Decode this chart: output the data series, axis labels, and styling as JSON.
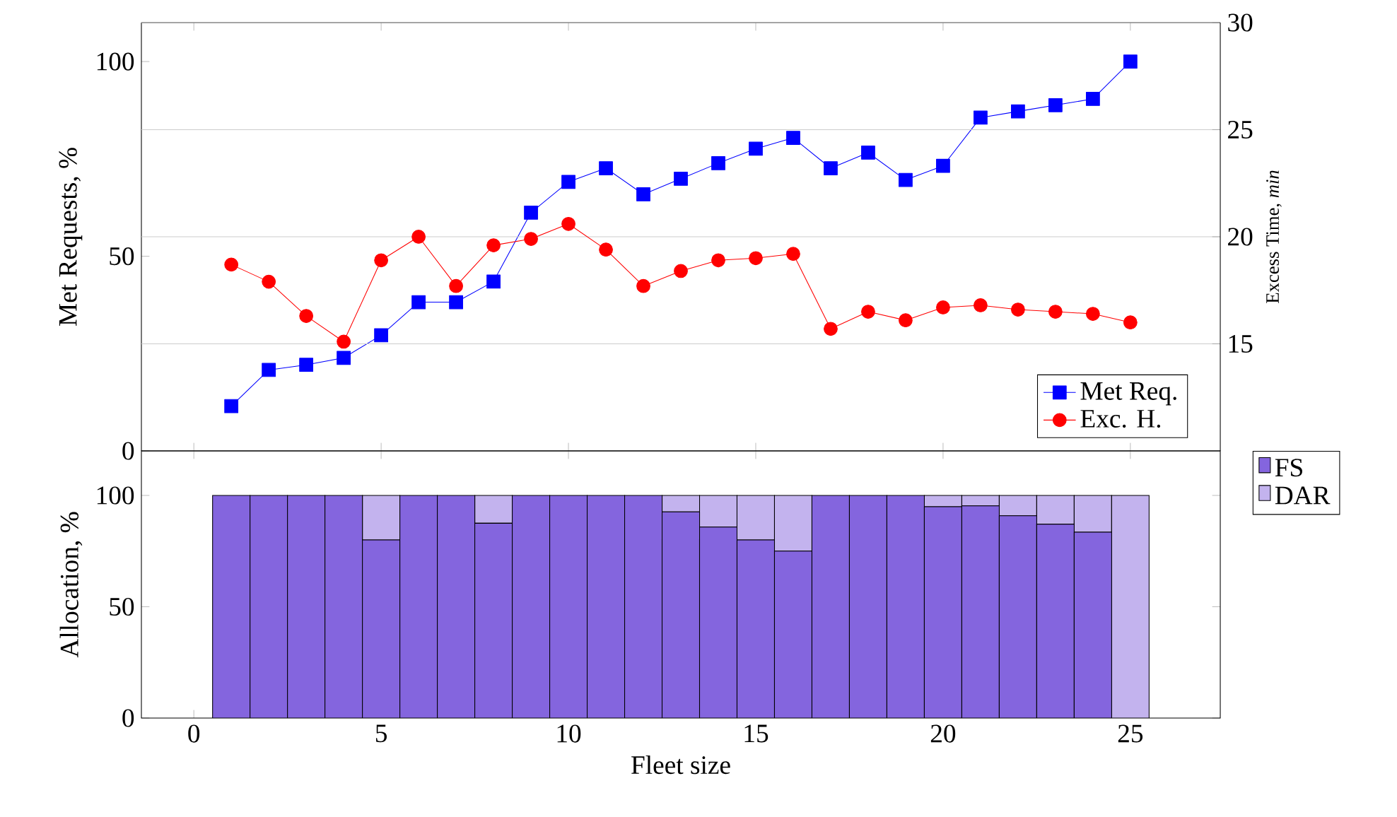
{
  "chart_data": [
    {
      "type": "line",
      "ylabel": "Met Requests, %",
      "y2label": "Excess Time, *min*",
      "x": [
        1,
        2,
        3,
        4,
        5,
        6,
        7,
        8,
        9,
        10,
        11,
        12,
        13,
        14,
        15,
        16,
        17,
        18,
        19,
        20,
        21,
        22,
        23,
        24,
        25
      ],
      "series": [
        {
          "name": "Met Req.",
          "color": "#0000ff",
          "marker": "square",
          "values": [
            11.5,
            20.8,
            22.1,
            23.9,
            29.7,
            38.2,
            38.2,
            43.5,
            61.2,
            69.1,
            72.6,
            65.9,
            69.9,
            73.9,
            77.6,
            80.4,
            72.6,
            76.6,
            69.6,
            73.2,
            85.6,
            87.2,
            88.8,
            90.4,
            100
          ]
        },
        {
          "name": "Exc. H.",
          "color": "#ff0000",
          "marker": "circle",
          "axis": "y2",
          "values": [
            18.7,
            17.9,
            16.3,
            15.1,
            18.9,
            20.0,
            17.7,
            19.6,
            19.9,
            20.6,
            19.4,
            17.7,
            18.4,
            18.9,
            19.0,
            19.2,
            15.7,
            16.5,
            16.1,
            16.7,
            16.8,
            16.6,
            16.5,
            16.4,
            16.0
          ]
        }
      ],
      "xlim": [
        -1.4,
        27.4
      ],
      "xticks": [
        0,
        5,
        10,
        15,
        20,
        25
      ],
      "ylim": [
        0,
        110
      ],
      "yticks": [
        0,
        50,
        100
      ],
      "y2lim": [
        10,
        30
      ],
      "y2ticks": [
        15,
        20,
        25,
        30
      ],
      "grid": "y",
      "legend": "bottom right",
      "tick_labels": "y"
    },
    {
      "type": "bar",
      "stacked": true,
      "xlabel": "Fleet size",
      "ylabel": "Allocation, %",
      "x": [
        1,
        2,
        3,
        4,
        5,
        6,
        7,
        8,
        9,
        10,
        11,
        12,
        13,
        14,
        15,
        16,
        17,
        18,
        19,
        20,
        21,
        22,
        23,
        24,
        25
      ],
      "series": [
        {
          "name": "FS",
          "color": "#8465de",
          "values": [
            100,
            100,
            100,
            100,
            80,
            100,
            100,
            87.5,
            100,
            100,
            100,
            100,
            92.6,
            85.8,
            80,
            75,
            100,
            100,
            100,
            94.9,
            95.3,
            90.9,
            87.1,
            83.5,
            0
          ]
        },
        {
          "name": "DAR",
          "color": "#c3b3ee",
          "values": [
            0,
            0,
            0,
            0,
            20,
            0,
            0,
            12.5,
            0,
            0,
            0,
            0,
            7.4,
            14.2,
            20,
            25,
            0,
            0,
            0,
            5.1,
            4.7,
            9.1,
            12.9,
            16.5,
            100
          ]
        }
      ],
      "xlim": [
        -1.4,
        27.4
      ],
      "xticks": [
        0,
        5,
        10,
        15,
        20,
        25
      ],
      "ylim": [
        0,
        120
      ],
      "yticks": [
        0,
        50,
        100
      ],
      "legend": "right"
    }
  ]
}
